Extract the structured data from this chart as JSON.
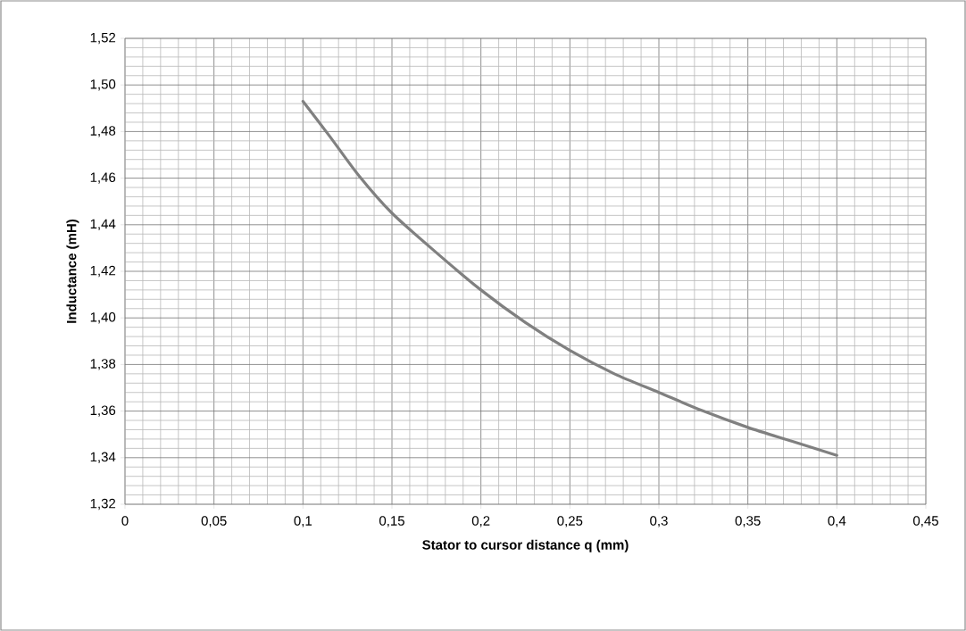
{
  "chart_data": {
    "type": "line",
    "xlabel": "Stator to cursor distance q (mm)",
    "ylabel": "Inductance (mH)",
    "x": [
      0.1,
      0.115,
      0.1315,
      0.15,
      0.175,
      0.2,
      0.225,
      0.25,
      0.275,
      0.3,
      0.325,
      0.35,
      0.375,
      0.4
    ],
    "series": [
      {
        "color": "#808080",
        "values": [
          1.493,
          1.478,
          1.461,
          1.445,
          1.428,
          1.412,
          1.398,
          1.386,
          1.376,
          1.368,
          1.36,
          1.353,
          1.347,
          1.341
        ]
      }
    ],
    "xlim": [
      0,
      0.45
    ],
    "ylim": [
      1.32,
      1.52
    ],
    "xticks": [
      0,
      {
        "value": 0.05,
        "label": "0,05"
      },
      {
        "value": 0.1,
        "label": "0,1"
      },
      {
        "value": 0.15,
        "label": "0,15"
      },
      {
        "value": 0.2,
        "label": "0,2"
      },
      {
        "value": 0.25,
        "label": "0,25"
      },
      {
        "value": 0.3,
        "label": "0,3"
      },
      {
        "value": 0.35,
        "label": "0,35"
      },
      {
        "value": 0.4,
        "label": "0,4"
      },
      {
        "value": 0.45,
        "label": "0,45"
      }
    ],
    "yticks": [
      {
        "value": 1.32,
        "label": "1,32"
      },
      {
        "value": 1.34,
        "label": "1,34"
      },
      {
        "value": 1.36,
        "label": "1,36"
      },
      {
        "value": 1.38,
        "label": "1,38"
      },
      {
        "value": 1.4,
        "label": "1,40"
      },
      {
        "value": 1.42,
        "label": "1,42"
      },
      {
        "value": 1.44,
        "label": "1,44"
      },
      {
        "value": 1.46,
        "label": "1,46"
      },
      {
        "value": 1.48,
        "label": "1,48"
      },
      {
        "value": 1.5,
        "label": "1,50"
      },
      {
        "value": 1.52,
        "label": "1,52"
      }
    ],
    "grid": true,
    "marker": "none",
    "line_style": "solid"
  }
}
